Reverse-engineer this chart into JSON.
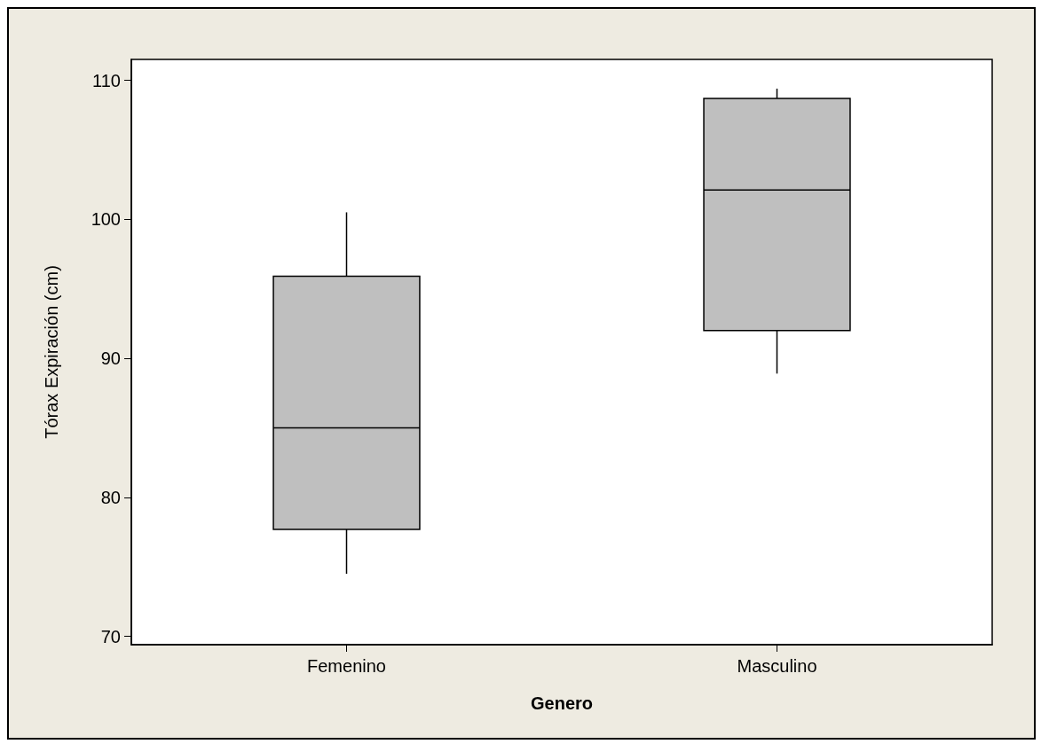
{
  "chart_data": {
    "type": "box",
    "xlabel": "Genero",
    "ylabel": "Tórax Expiración (cm)",
    "categories": [
      "Femenino",
      "Masculino"
    ],
    "boxes": [
      {
        "low": 74.5,
        "q1": 77.7,
        "median": 85.0,
        "q3": 95.9,
        "high": 100.5
      },
      {
        "low": 88.9,
        "q1": 92.0,
        "median": 102.1,
        "q3": 108.7,
        "high": 109.4
      }
    ],
    "color": "#bfbfbf",
    "ylim": [
      69.4,
      111.5
    ],
    "yticks": [
      70,
      80,
      90,
      100,
      110
    ],
    "grid": false
  }
}
